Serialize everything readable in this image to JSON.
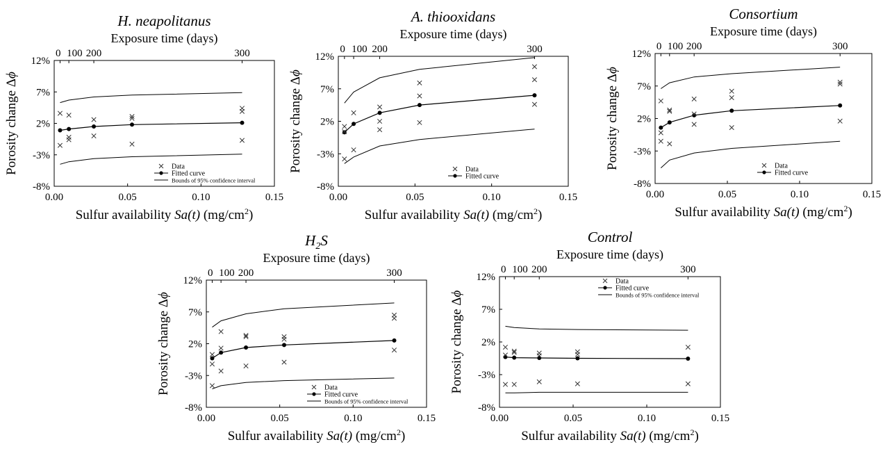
{
  "figure": {
    "axis_labels": {
      "x_bottom_prefix": "Sulfur availability ",
      "x_bottom_var": "Sa(t)",
      "x_bottom_unit": " (mg/cm",
      "x_bottom_unit_sup": "2",
      "x_bottom_unit_end": ")",
      "x_top": "Exposure time (days)",
      "y_prefix": "Porosity change Δ",
      "y_var": "ϕ"
    },
    "legend_labels": {
      "data": "Data",
      "fit": "Fitted curve",
      "ci": "Bounds of 95% confidence interval"
    }
  },
  "chart_data": [
    {
      "type": "scatter",
      "title": "H. neapolitanus",
      "title_italic": true,
      "xlim": [
        0,
        0.15
      ],
      "x_ticks": [
        "0.00",
        "0.05",
        "0.10",
        "0.15"
      ],
      "ylim": [
        -8,
        12
      ],
      "y_ticks": [
        "-8%",
        "-3%",
        "2%",
        "7%",
        "12%"
      ],
      "top_axis_ticks": [
        {
          "label": "0",
          "sa": 0.004
        },
        {
          "label": "100",
          "sa": 0.01
        },
        {
          "label": "200",
          "sa": 0.027
        },
        {
          "label": "300",
          "sa": 0.128
        }
      ],
      "legend": [
        "data",
        "fit",
        "ci"
      ],
      "data_points": [
        {
          "x": 0.004,
          "y": 3.6
        },
        {
          "x": 0.004,
          "y": -1.5
        },
        {
          "x": 0.01,
          "y": 3.3
        },
        {
          "x": 0.01,
          "y": -0.2
        },
        {
          "x": 0.01,
          "y": -0.6
        },
        {
          "x": 0.027,
          "y": 2.6
        },
        {
          "x": 0.027,
          "y": 0.0
        },
        {
          "x": 0.053,
          "y": 3.1
        },
        {
          "x": 0.053,
          "y": 2.8
        },
        {
          "x": 0.053,
          "y": -1.3
        },
        {
          "x": 0.128,
          "y": 4.4
        },
        {
          "x": 0.128,
          "y": 3.9
        },
        {
          "x": 0.128,
          "y": -0.7
        }
      ],
      "fitted_curve": {
        "x": [
          0.004,
          0.01,
          0.027,
          0.053,
          0.128
        ],
        "y": [
          0.9,
          1.1,
          1.5,
          1.8,
          2.1
        ]
      },
      "ci_upper": {
        "x": [
          0.004,
          0.01,
          0.027,
          0.053,
          0.128
        ],
        "y": [
          5.3,
          5.7,
          6.2,
          6.5,
          6.9
        ]
      },
      "ci_lower": {
        "x": [
          0.004,
          0.01,
          0.027,
          0.053,
          0.128
        ],
        "y": [
          -4.5,
          -4.1,
          -3.6,
          -3.3,
          -2.9
        ]
      }
    },
    {
      "type": "scatter",
      "title": "A. thiooxidans",
      "title_italic": true,
      "xlim": [
        0,
        0.15
      ],
      "x_ticks": [
        "0.00",
        "0.05",
        "0.10",
        "0.15"
      ],
      "ylim": [
        -8,
        12
      ],
      "y_ticks": [
        "-8%",
        "-3%",
        "2%",
        "7%",
        "12%"
      ],
      "top_axis_ticks": [
        {
          "label": "0",
          "sa": 0.004
        },
        {
          "label": "100",
          "sa": 0.01
        },
        {
          "label": "200",
          "sa": 0.027
        },
        {
          "label": "300",
          "sa": 0.128
        }
      ],
      "legend": [
        "data",
        "fit"
      ],
      "data_points": [
        {
          "x": 0.004,
          "y": 1.2
        },
        {
          "x": 0.004,
          "y": 0.4
        },
        {
          "x": 0.004,
          "y": -3.8
        },
        {
          "x": 0.01,
          "y": 3.3
        },
        {
          "x": 0.01,
          "y": -2.4
        },
        {
          "x": 0.027,
          "y": 4.2
        },
        {
          "x": 0.027,
          "y": 2.0
        },
        {
          "x": 0.027,
          "y": 0.7
        },
        {
          "x": 0.053,
          "y": 7.9
        },
        {
          "x": 0.053,
          "y": 5.9
        },
        {
          "x": 0.053,
          "y": 1.8
        },
        {
          "x": 0.128,
          "y": 10.4
        },
        {
          "x": 0.128,
          "y": 8.4
        },
        {
          "x": 0.128,
          "y": 4.6
        }
      ],
      "fitted_curve": {
        "x": [
          0.004,
          0.01,
          0.027,
          0.053,
          0.128
        ],
        "y": [
          0.3,
          1.6,
          3.3,
          4.5,
          6.0
        ]
      },
      "ci_upper": {
        "x": [
          0.004,
          0.01,
          0.027,
          0.053,
          0.128
        ],
        "y": [
          4.8,
          6.5,
          8.7,
          10.0,
          11.8
        ]
      },
      "ci_lower": {
        "x": [
          0.004,
          0.01,
          0.027,
          0.053,
          0.128
        ],
        "y": [
          -4.5,
          -3.5,
          -1.8,
          -0.8,
          0.8
        ]
      }
    },
    {
      "type": "scatter",
      "title": "Consortium",
      "title_italic": true,
      "xlim": [
        0,
        0.15
      ],
      "x_ticks": [
        "0.00",
        "0.05",
        "0.10",
        "0.15"
      ],
      "ylim": [
        -8,
        12
      ],
      "y_ticks": [
        "-8%",
        "-3%",
        "2%",
        "7%",
        "12%"
      ],
      "top_axis_ticks": [
        {
          "label": "0",
          "sa": 0.004
        },
        {
          "label": "100",
          "sa": 0.01
        },
        {
          "label": "200",
          "sa": 0.027
        },
        {
          "label": "300",
          "sa": 0.128
        }
      ],
      "legend": [
        "data",
        "fit"
      ],
      "data_points": [
        {
          "x": 0.004,
          "y": 4.7
        },
        {
          "x": 0.004,
          "y": -0.2
        },
        {
          "x": 0.004,
          "y": -1.5
        },
        {
          "x": 0.01,
          "y": 3.3
        },
        {
          "x": 0.01,
          "y": 3.1
        },
        {
          "x": 0.01,
          "y": -1.9
        },
        {
          "x": 0.027,
          "y": 5.0
        },
        {
          "x": 0.027,
          "y": 2.7
        },
        {
          "x": 0.027,
          "y": 1.1
        },
        {
          "x": 0.053,
          "y": 6.2
        },
        {
          "x": 0.053,
          "y": 5.2
        },
        {
          "x": 0.053,
          "y": 0.6
        },
        {
          "x": 0.128,
          "y": 7.6
        },
        {
          "x": 0.128,
          "y": 7.3
        },
        {
          "x": 0.128,
          "y": 1.6
        }
      ],
      "fitted_curve": {
        "x": [
          0.004,
          0.01,
          0.027,
          0.053,
          0.128
        ],
        "y": [
          0.6,
          1.4,
          2.5,
          3.2,
          4.0
        ]
      },
      "ci_upper": {
        "x": [
          0.004,
          0.01,
          0.027,
          0.053,
          0.128
        ],
        "y": [
          6.6,
          7.5,
          8.4,
          8.9,
          9.9
        ]
      },
      "ci_lower": {
        "x": [
          0.004,
          0.01,
          0.027,
          0.053,
          0.128
        ],
        "y": [
          -5.6,
          -4.4,
          -3.3,
          -2.6,
          -1.5
        ]
      }
    },
    {
      "type": "scatter",
      "title": "H",
      "title_sub": "2",
      "title_tail": "S",
      "title_italic": true,
      "xlim": [
        0,
        0.15
      ],
      "x_ticks": [
        "0.00",
        "0.05",
        "0.10",
        "0.15"
      ],
      "ylim": [
        -8,
        12
      ],
      "y_ticks": [
        "-8%",
        "-3%",
        "2%",
        "7%",
        "12%"
      ],
      "top_axis_ticks": [
        {
          "label": "0",
          "sa": 0.004
        },
        {
          "label": "100",
          "sa": 0.01
        },
        {
          "label": "200",
          "sa": 0.027
        },
        {
          "label": "300",
          "sa": 0.128
        }
      ],
      "legend": [
        "data",
        "fit",
        "ci"
      ],
      "data_points": [
        {
          "x": 0.004,
          "y": 0.3
        },
        {
          "x": 0.004,
          "y": -1.2
        },
        {
          "x": 0.004,
          "y": -4.6
        },
        {
          "x": 0.01,
          "y": 3.9
        },
        {
          "x": 0.01,
          "y": 1.3
        },
        {
          "x": 0.01,
          "y": -2.3
        },
        {
          "x": 0.027,
          "y": 3.3
        },
        {
          "x": 0.027,
          "y": 3.1
        },
        {
          "x": 0.027,
          "y": -1.5
        },
        {
          "x": 0.053,
          "y": 3.1
        },
        {
          "x": 0.053,
          "y": 2.7
        },
        {
          "x": 0.053,
          "y": -0.9
        },
        {
          "x": 0.128,
          "y": 6.5
        },
        {
          "x": 0.128,
          "y": 6.0
        },
        {
          "x": 0.128,
          "y": 1.0
        }
      ],
      "fitted_curve": {
        "x": [
          0.004,
          0.01,
          0.027,
          0.053,
          0.128
        ],
        "y": [
          -0.3,
          0.6,
          1.4,
          1.8,
          2.5
        ]
      },
      "ci_upper": {
        "x": [
          0.004,
          0.01,
          0.027,
          0.053,
          0.128
        ],
        "y": [
          4.6,
          5.6,
          6.7,
          7.5,
          8.4
        ]
      },
      "ci_lower": {
        "x": [
          0.004,
          0.01,
          0.027,
          0.053,
          0.128
        ],
        "y": [
          -5.1,
          -4.6,
          -4.1,
          -3.8,
          -3.4
        ]
      }
    },
    {
      "type": "scatter",
      "title": "Control",
      "title_italic": true,
      "xlim": [
        0,
        0.15
      ],
      "x_ticks": [
        "0.00",
        "0.05",
        "0.10",
        "0.15"
      ],
      "ylim": [
        -8,
        12
      ],
      "y_ticks": [
        "-8%",
        "-3%",
        "2%",
        "7%",
        "12%"
      ],
      "top_axis_ticks": [
        {
          "label": "0",
          "sa": 0.004
        },
        {
          "label": "100",
          "sa": 0.01
        },
        {
          "label": "200",
          "sa": 0.027
        },
        {
          "label": "300",
          "sa": 0.128
        }
      ],
      "legend": [
        "data",
        "fit",
        "ci"
      ],
      "data_points": [
        {
          "x": 0.004,
          "y": 1.2
        },
        {
          "x": 0.004,
          "y": 0.0
        },
        {
          "x": 0.004,
          "y": -4.5
        },
        {
          "x": 0.01,
          "y": 0.6
        },
        {
          "x": 0.01,
          "y": 0.4
        },
        {
          "x": 0.01,
          "y": -4.5
        },
        {
          "x": 0.027,
          "y": 0.3
        },
        {
          "x": 0.027,
          "y": -0.1
        },
        {
          "x": 0.027,
          "y": -4.1
        },
        {
          "x": 0.053,
          "y": 0.5
        },
        {
          "x": 0.053,
          "y": 0.1
        },
        {
          "x": 0.053,
          "y": -4.4
        },
        {
          "x": 0.128,
          "y": 1.2
        },
        {
          "x": 0.128,
          "y": -4.4
        }
      ],
      "fitted_curve": {
        "x": [
          0.004,
          0.01,
          0.027,
          0.053,
          0.128
        ],
        "y": [
          -0.3,
          -0.4,
          -0.45,
          -0.5,
          -0.55
        ]
      },
      "ci_upper": {
        "x": [
          0.004,
          0.01,
          0.027,
          0.053,
          0.128
        ],
        "y": [
          4.4,
          4.2,
          4.0,
          3.9,
          3.8
        ]
      },
      "ci_lower": {
        "x": [
          0.004,
          0.01,
          0.027,
          0.053,
          0.128
        ],
        "y": [
          -5.8,
          -5.8,
          -5.7,
          -5.7,
          -5.7
        ]
      }
    }
  ]
}
